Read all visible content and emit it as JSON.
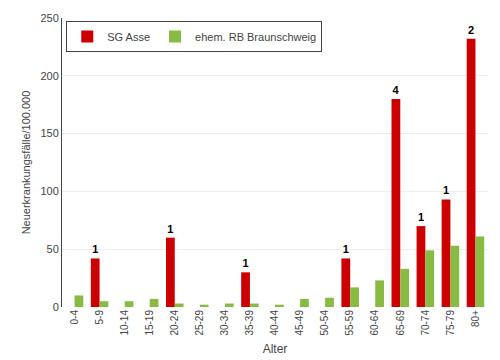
{
  "chart_data": {
    "type": "bar",
    "xlabel": "Alter",
    "ylabel": "Neuerkrankungsfälle/100.000",
    "categories": [
      "0-4",
      "5-9",
      "10-14",
      "15-19",
      "20-24",
      "25-29",
      "30-34",
      "35-39",
      "40-44",
      "45-49",
      "50-54",
      "55-59",
      "60-64",
      "65-69",
      "70-74",
      "75-79",
      "80+"
    ],
    "series": [
      {
        "name": "SG Asse",
        "color": "#cc0000",
        "values": [
          0,
          42,
          0,
          0,
          60,
          0,
          0,
          30,
          0,
          0,
          0,
          42,
          0,
          180,
          70,
          93,
          232
        ],
        "counts": [
          null,
          1,
          null,
          null,
          1,
          null,
          null,
          1,
          null,
          null,
          null,
          1,
          null,
          4,
          1,
          1,
          2
        ]
      },
      {
        "name": "ehem. RB Braunschweig",
        "color": "#88bb44",
        "values": [
          10,
          5,
          5,
          7,
          3,
          2,
          3,
          3,
          2,
          7,
          8,
          17,
          23,
          33,
          49,
          53,
          61
        ]
      }
    ],
    "ylim": [
      0,
      250
    ],
    "yticks": [
      0,
      50,
      100,
      150,
      200,
      250
    ],
    "grid": true,
    "legend": "upper left"
  }
}
